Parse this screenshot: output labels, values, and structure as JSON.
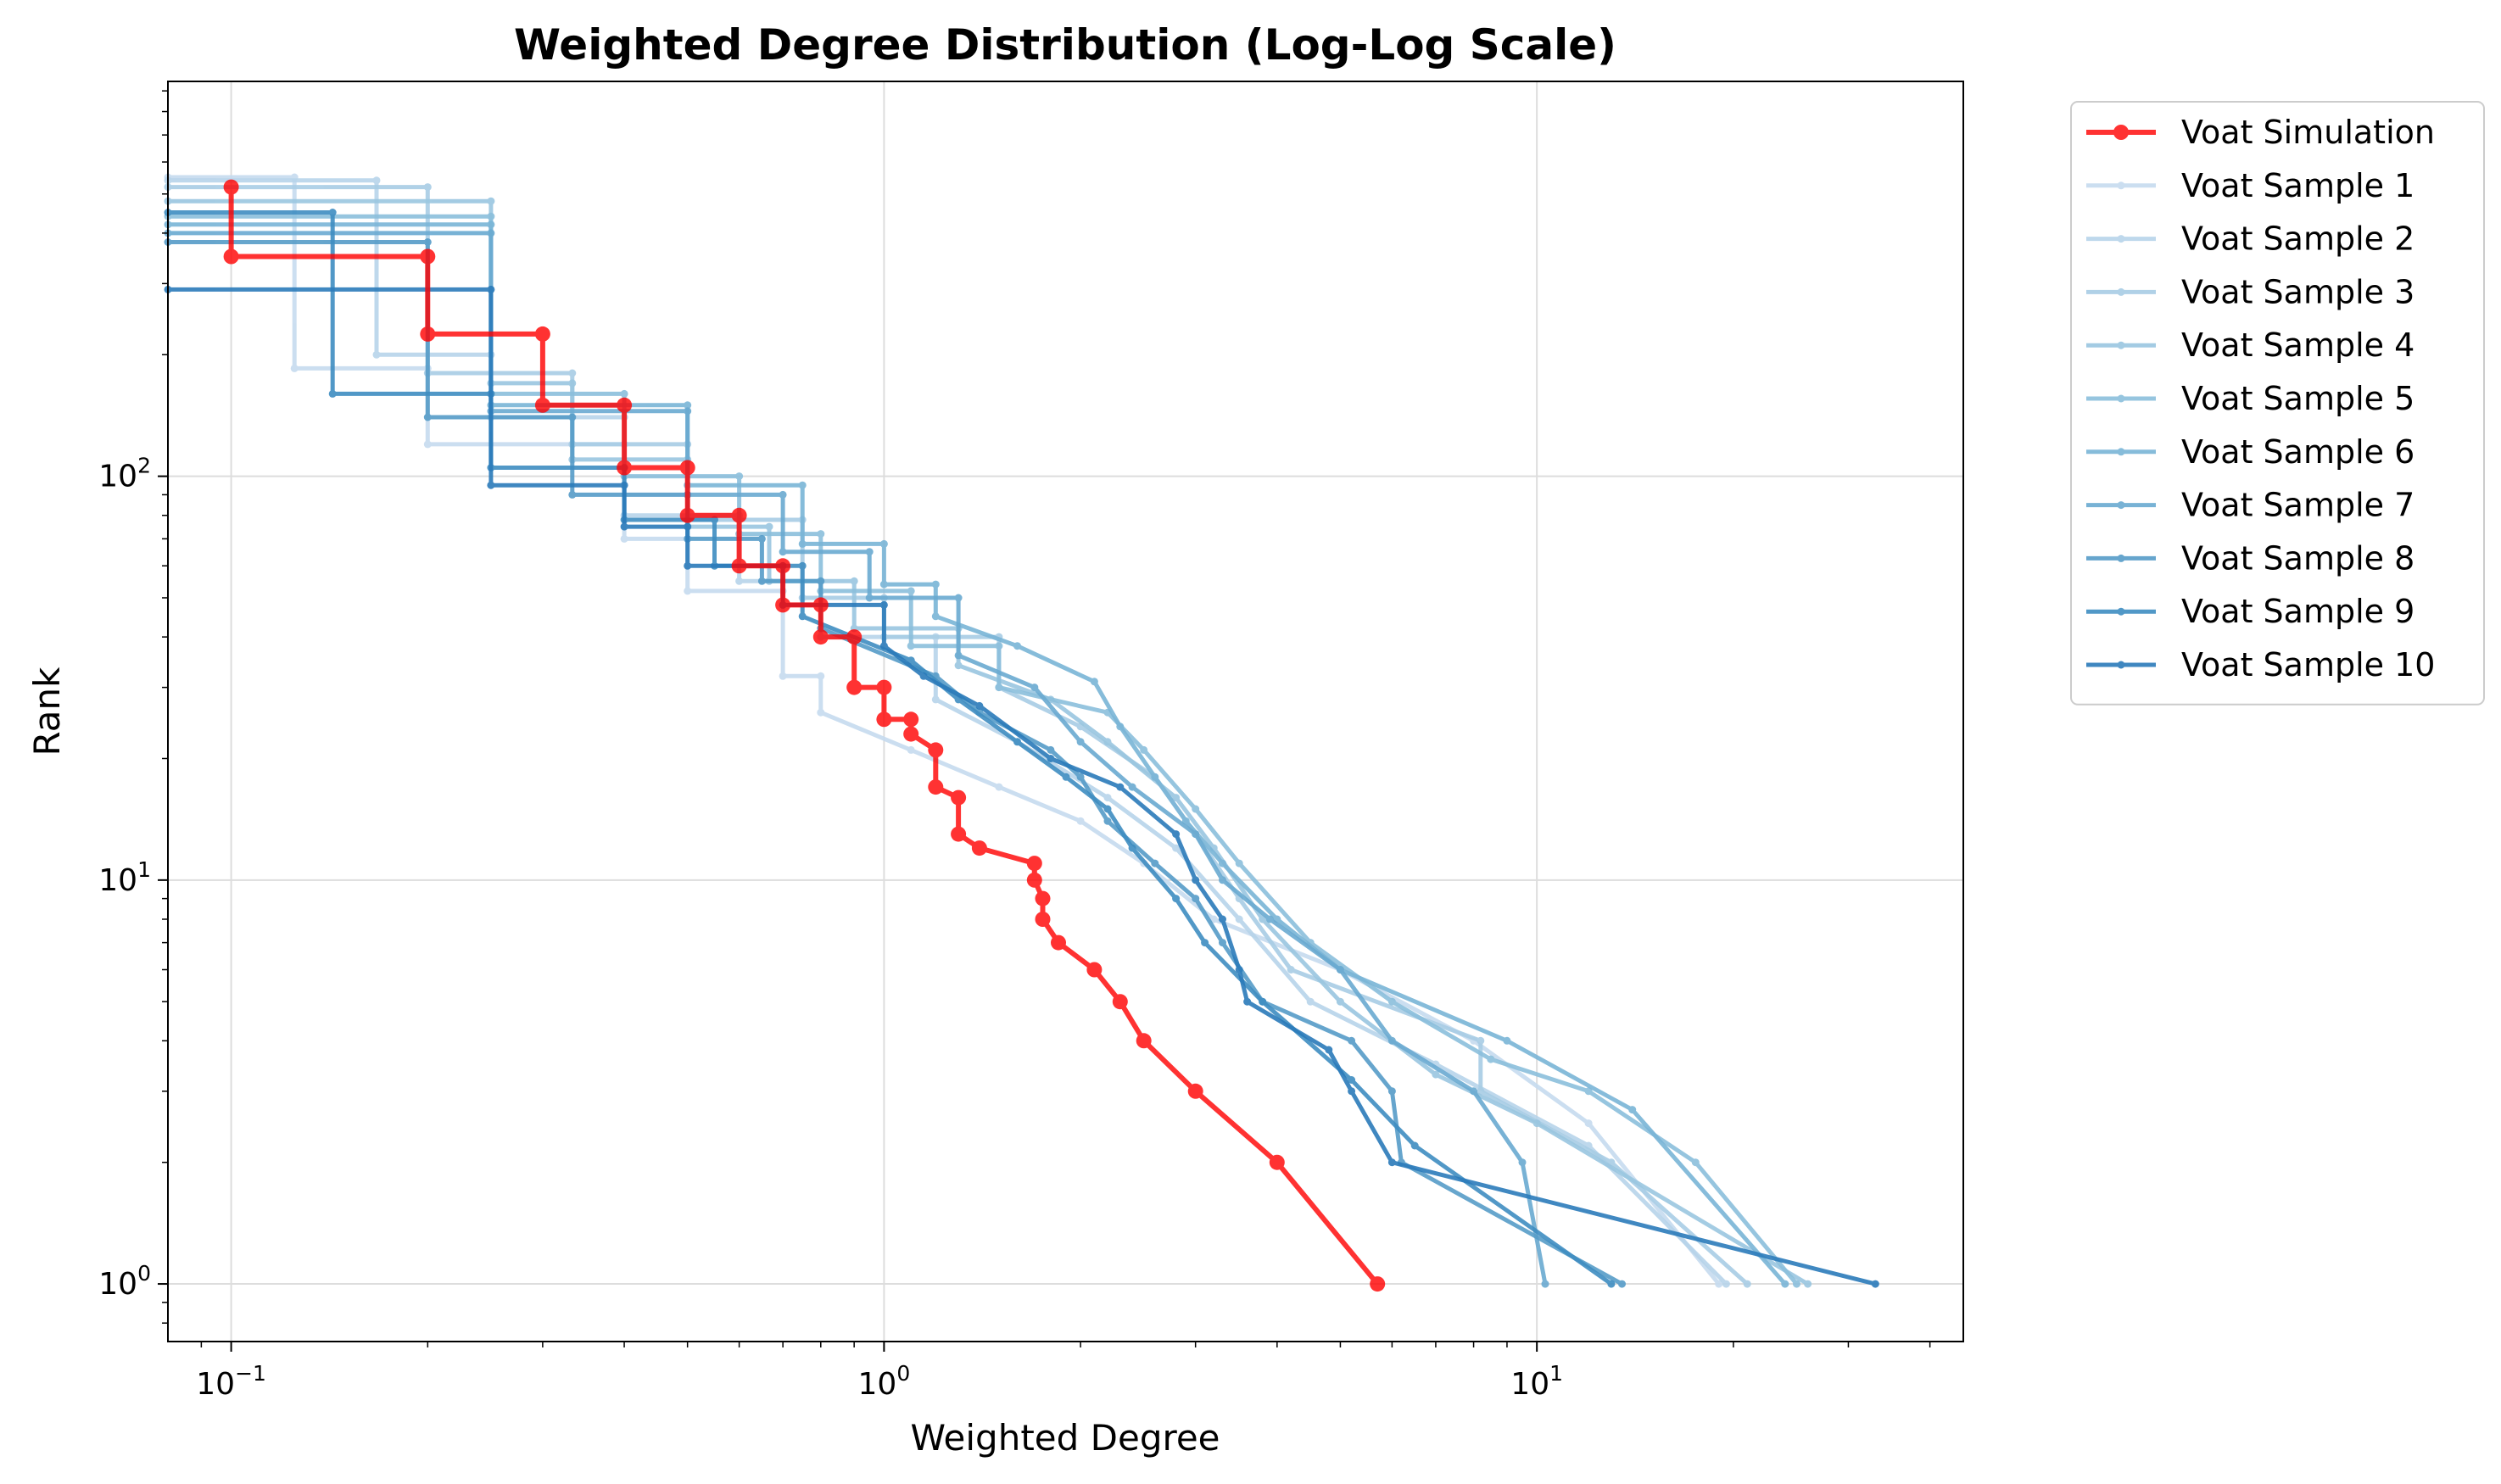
{
  "chart_data": {
    "type": "line",
    "title": "Weighted Degree Distribution (Log-Log Scale)",
    "xlabel": "Weighted Degree",
    "ylabel": "Rank",
    "xscale": "log",
    "yscale": "log",
    "xlim": [
      0.08,
      45
    ],
    "ylim": [
      0.72,
      950
    ],
    "x_ticks": [
      {
        "base": "10",
        "exp": "−1"
      },
      {
        "base": "10",
        "exp": "0"
      },
      {
        "base": "10",
        "exp": "1"
      }
    ],
    "y_ticks": [
      {
        "base": "10",
        "exp": "0"
      },
      {
        "base": "10",
        "exp": "1"
      },
      {
        "base": "10",
        "exp": "2"
      }
    ],
    "grid": true,
    "legend_position": "outside-right",
    "series": [
      {
        "name": "Voat Simulation",
        "color": "#ff0000",
        "opacity": 0.8,
        "main": true,
        "points": [
          [
            0.1,
            520
          ],
          [
            0.1,
            350
          ],
          [
            0.2,
            350
          ],
          [
            0.2,
            225
          ],
          [
            0.3,
            225
          ],
          [
            0.3,
            150
          ],
          [
            0.4,
            150
          ],
          [
            0.4,
            105
          ],
          [
            0.5,
            105
          ],
          [
            0.5,
            80
          ],
          [
            0.6,
            80
          ],
          [
            0.6,
            60
          ],
          [
            0.7,
            60
          ],
          [
            0.7,
            48
          ],
          [
            0.8,
            48
          ],
          [
            0.8,
            40
          ],
          [
            0.9,
            40
          ],
          [
            0.9,
            30
          ],
          [
            1.0,
            30
          ],
          [
            1.0,
            25
          ],
          [
            1.1,
            25
          ],
          [
            1.1,
            23
          ],
          [
            1.2,
            21
          ],
          [
            1.2,
            17
          ],
          [
            1.3,
            16
          ],
          [
            1.3,
            13
          ],
          [
            1.4,
            12
          ],
          [
            1.7,
            11
          ],
          [
            1.7,
            10
          ],
          [
            1.75,
            9
          ],
          [
            1.75,
            8
          ],
          [
            1.85,
            7
          ],
          [
            2.1,
            6
          ],
          [
            2.3,
            5
          ],
          [
            2.5,
            4
          ],
          [
            3.0,
            3
          ],
          [
            4.0,
            2
          ],
          [
            5.7,
            1
          ]
        ]
      },
      {
        "name": "Voat Sample 1",
        "color": "#c6dbef",
        "opacity": 0.9,
        "points": [
          [
            0.08,
            550
          ],
          [
            0.125,
            550
          ],
          [
            0.125,
            185
          ],
          [
            0.2,
            185
          ],
          [
            0.2,
            120
          ],
          [
            0.4,
            120
          ],
          [
            0.4,
            70
          ],
          [
            0.5,
            70
          ],
          [
            0.5,
            52
          ],
          [
            0.7,
            52
          ],
          [
            0.7,
            32
          ],
          [
            0.8,
            32
          ],
          [
            0.8,
            26
          ],
          [
            1.1,
            21
          ],
          [
            1.5,
            17
          ],
          [
            2.0,
            14
          ],
          [
            2.5,
            11
          ],
          [
            3.2,
            8
          ],
          [
            5.0,
            6
          ],
          [
            8.0,
            4
          ],
          [
            12.0,
            2.5
          ],
          [
            19.0,
            1
          ]
        ]
      },
      {
        "name": "Voat Sample 2",
        "color": "#b7d4ea",
        "opacity": 0.9,
        "points": [
          [
            0.08,
            540
          ],
          [
            0.167,
            540
          ],
          [
            0.167,
            200
          ],
          [
            0.25,
            200
          ],
          [
            0.25,
            140
          ],
          [
            0.4,
            140
          ],
          [
            0.4,
            80
          ],
          [
            0.6,
            80
          ],
          [
            0.6,
            55
          ],
          [
            0.8,
            55
          ],
          [
            0.8,
            40
          ],
          [
            1.2,
            40
          ],
          [
            1.2,
            28
          ],
          [
            1.6,
            22
          ],
          [
            2.2,
            16
          ],
          [
            2.8,
            12
          ],
          [
            3.5,
            8
          ],
          [
            4.5,
            5
          ],
          [
            7.0,
            3.5
          ],
          [
            12.0,
            2.2
          ],
          [
            19.5,
            1
          ]
        ]
      },
      {
        "name": "Voat Sample 3",
        "color": "#a8cde5",
        "opacity": 0.9,
        "points": [
          [
            0.08,
            520
          ],
          [
            0.2,
            520
          ],
          [
            0.2,
            180
          ],
          [
            0.333,
            180
          ],
          [
            0.333,
            120
          ],
          [
            0.5,
            120
          ],
          [
            0.5,
            78
          ],
          [
            0.75,
            78
          ],
          [
            0.75,
            50
          ],
          [
            1.0,
            50
          ],
          [
            1.0,
            40
          ],
          [
            1.5,
            40
          ],
          [
            1.5,
            30
          ],
          [
            2.0,
            24
          ],
          [
            2.6,
            18
          ],
          [
            3.0,
            13
          ],
          [
            3.5,
            9
          ],
          [
            4.2,
            6
          ],
          [
            8.2,
            4
          ],
          [
            8.2,
            3
          ],
          [
            13.0,
            2
          ],
          [
            21.0,
            1
          ]
        ]
      },
      {
        "name": "Voat Sample 4",
        "color": "#9ac6e0",
        "opacity": 0.9,
        "points": [
          [
            0.08,
            480
          ],
          [
            0.25,
            480
          ],
          [
            0.25,
            170
          ],
          [
            0.333,
            170
          ],
          [
            0.333,
            110
          ],
          [
            0.5,
            110
          ],
          [
            0.5,
            75
          ],
          [
            0.667,
            75
          ],
          [
            0.667,
            55
          ],
          [
            0.9,
            55
          ],
          [
            0.9,
            42
          ],
          [
            1.3,
            42
          ],
          [
            1.3,
            34
          ],
          [
            1.8,
            28
          ],
          [
            2.2,
            22
          ],
          [
            2.8,
            16
          ],
          [
            3.2,
            12
          ],
          [
            3.8,
            8
          ],
          [
            5.0,
            5
          ],
          [
            7.0,
            3.3
          ],
          [
            10.0,
            2.5
          ],
          [
            26.0,
            1
          ]
        ]
      },
      {
        "name": "Voat Sample 5",
        "color": "#8bbfdc",
        "opacity": 0.9,
        "points": [
          [
            0.08,
            440
          ],
          [
            0.25,
            440
          ],
          [
            0.25,
            160
          ],
          [
            0.4,
            160
          ],
          [
            0.4,
            100
          ],
          [
            0.6,
            100
          ],
          [
            0.6,
            72
          ],
          [
            0.8,
            72
          ],
          [
            0.8,
            52
          ],
          [
            1.1,
            52
          ],
          [
            1.1,
            38
          ],
          [
            1.5,
            38
          ],
          [
            1.5,
            30
          ],
          [
            2.2,
            26
          ],
          [
            2.5,
            21
          ],
          [
            3.0,
            15
          ],
          [
            3.5,
            11
          ],
          [
            4.5,
            7
          ],
          [
            6.0,
            5
          ],
          [
            8.5,
            3.6
          ],
          [
            12.0,
            3
          ],
          [
            17.5,
            2
          ],
          [
            25.0,
            1
          ]
        ]
      },
      {
        "name": "Voat Sample 6",
        "color": "#7ab5d7",
        "opacity": 0.9,
        "points": [
          [
            0.08,
            420
          ],
          [
            0.25,
            420
          ],
          [
            0.25,
            150
          ],
          [
            0.5,
            150
          ],
          [
            0.5,
            95
          ],
          [
            0.75,
            95
          ],
          [
            0.75,
            68
          ],
          [
            1.0,
            68
          ],
          [
            1.0,
            54
          ],
          [
            1.2,
            54
          ],
          [
            1.2,
            45
          ],
          [
            1.6,
            38
          ],
          [
            2.1,
            31
          ],
          [
            2.3,
            24
          ],
          [
            2.6,
            18
          ],
          [
            2.9,
            14
          ],
          [
            3.3,
            11
          ],
          [
            4.0,
            8
          ],
          [
            5.0,
            6
          ],
          [
            9.0,
            4
          ],
          [
            14.0,
            2.7
          ],
          [
            24.0,
            1
          ]
        ]
      },
      {
        "name": "Voat Sample 7",
        "color": "#6aaad1",
        "opacity": 0.9,
        "points": [
          [
            0.08,
            400
          ],
          [
            0.25,
            400
          ],
          [
            0.25,
            145
          ],
          [
            0.5,
            145
          ],
          [
            0.5,
            90
          ],
          [
            0.7,
            90
          ],
          [
            0.7,
            65
          ],
          [
            0.95,
            65
          ],
          [
            0.95,
            50
          ],
          [
            1.3,
            50
          ],
          [
            1.3,
            36
          ],
          [
            1.7,
            30
          ],
          [
            2.0,
            22
          ],
          [
            2.4,
            17
          ],
          [
            3.0,
            13
          ],
          [
            3.3,
            10
          ],
          [
            3.9,
            8
          ],
          [
            5.0,
            6
          ],
          [
            6.0,
            4
          ],
          [
            8.0,
            3
          ],
          [
            9.5,
            2
          ],
          [
            10.3,
            1
          ]
        ]
      },
      {
        "name": "Voat Sample 8",
        "color": "#569cc8",
        "opacity": 0.9,
        "points": [
          [
            0.08,
            380
          ],
          [
            0.2,
            380
          ],
          [
            0.2,
            140
          ],
          [
            0.333,
            140
          ],
          [
            0.333,
            90
          ],
          [
            0.5,
            90
          ],
          [
            0.5,
            70
          ],
          [
            0.65,
            70
          ],
          [
            0.65,
            55
          ],
          [
            0.8,
            55
          ],
          [
            0.8,
            42
          ],
          [
            1.2,
            32
          ],
          [
            1.4,
            26
          ],
          [
            1.8,
            21
          ],
          [
            2.0,
            18
          ],
          [
            2.2,
            14
          ],
          [
            2.6,
            11
          ],
          [
            3.0,
            9
          ],
          [
            3.3,
            7
          ],
          [
            3.8,
            5
          ],
          [
            5.2,
            4
          ],
          [
            6.0,
            3
          ],
          [
            6.2,
            2
          ],
          [
            13.5,
            1
          ]
        ]
      },
      {
        "name": "Voat Sample 9",
        "color": "#3f8dc1",
        "opacity": 0.9,
        "points": [
          [
            0.08,
            450
          ],
          [
            0.143,
            450
          ],
          [
            0.143,
            160
          ],
          [
            0.25,
            160
          ],
          [
            0.25,
            105
          ],
          [
            0.4,
            105
          ],
          [
            0.4,
            78
          ],
          [
            0.55,
            78
          ],
          [
            0.55,
            60
          ],
          [
            0.75,
            60
          ],
          [
            0.75,
            45
          ],
          [
            1.1,
            35
          ],
          [
            1.3,
            28
          ],
          [
            1.6,
            22
          ],
          [
            1.9,
            18
          ],
          [
            2.2,
            15
          ],
          [
            2.4,
            12
          ],
          [
            2.8,
            9
          ],
          [
            3.1,
            7
          ],
          [
            3.8,
            5
          ],
          [
            5.2,
            3.2
          ],
          [
            6.5,
            2.2
          ],
          [
            13.0,
            1
          ]
        ]
      },
      {
        "name": "Voat Sample 10",
        "color": "#2b7bba",
        "opacity": 0.9,
        "points": [
          [
            0.08,
            290
          ],
          [
            0.25,
            290
          ],
          [
            0.25,
            95
          ],
          [
            0.4,
            95
          ],
          [
            0.4,
            75
          ],
          [
            0.5,
            75
          ],
          [
            0.5,
            60
          ],
          [
            0.7,
            60
          ],
          [
            0.7,
            48
          ],
          [
            1.0,
            48
          ],
          [
            1.0,
            38
          ],
          [
            1.15,
            32
          ],
          [
            1.4,
            27
          ],
          [
            1.8,
            20
          ],
          [
            2.3,
            17
          ],
          [
            2.8,
            13
          ],
          [
            3.0,
            10
          ],
          [
            3.3,
            8
          ],
          [
            3.5,
            6
          ],
          [
            3.6,
            5
          ],
          [
            4.8,
            3.8
          ],
          [
            5.2,
            3
          ],
          [
            6.0,
            2
          ],
          [
            33.0,
            1
          ]
        ]
      }
    ]
  }
}
